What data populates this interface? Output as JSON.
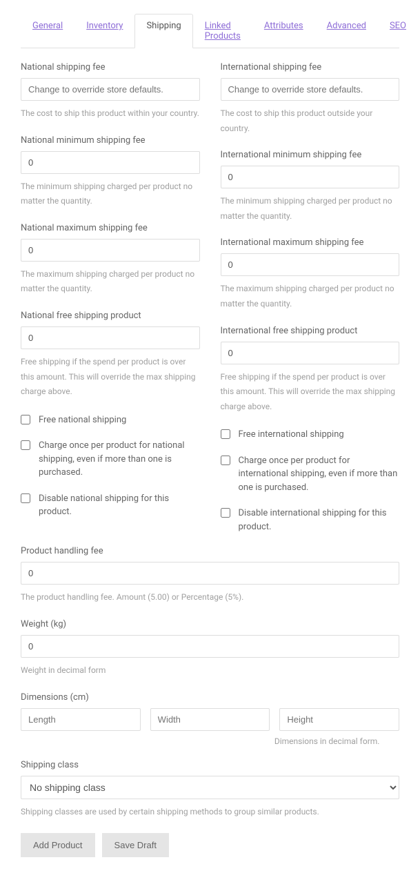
{
  "tabs": {
    "general": "General",
    "inventory": "Inventory",
    "shipping": "Shipping",
    "linked_products": "Linked Products",
    "attributes": "Attributes",
    "advanced": "Advanced",
    "seo": "SEO"
  },
  "national": {
    "fee_label": "National shipping fee",
    "fee_placeholder": "Change to override store defaults.",
    "fee_help": "The cost to ship this product within your country.",
    "min_label": "National minimum shipping fee",
    "min_value": "0",
    "min_help": "The minimum shipping charged per product no matter the quantity.",
    "max_label": "National maximum shipping fee",
    "max_value": "0",
    "max_help": "The maximum shipping charged per product no matter the quantity.",
    "free_label": "National free shipping product",
    "free_value": "0",
    "free_help": "Free shipping if the spend per product is over this amount. This will override the max shipping charge above.",
    "cb_free": "Free national shipping",
    "cb_charge_once": "Charge once per product for national shipping, even if more than one is purchased.",
    "cb_disable": "Disable national shipping for this product."
  },
  "international": {
    "fee_label": "International shipping fee",
    "fee_placeholder": "Change to override store defaults.",
    "fee_help": "The cost to ship this product outside your country.",
    "min_label": "International minimum shipping fee",
    "min_value": "0",
    "min_help": "The minimum shipping charged per product no matter the quantity.",
    "max_label": "International maximum shipping fee",
    "max_value": "0",
    "max_help": "The maximum shipping charged per product no matter the quantity.",
    "free_label": "International free shipping product",
    "free_value": "0",
    "free_help": "Free shipping if the spend per product is over this amount. This will override the max shipping charge above.",
    "cb_free": "Free international shipping",
    "cb_charge_once": "Charge once per product for international shipping, even if more than one is purchased.",
    "cb_disable": "Disable international shipping for this product."
  },
  "handling": {
    "label": "Product handling fee",
    "value": "0",
    "help": "The product handling fee. Amount (5.00) or Percentage (5%)."
  },
  "weight": {
    "label": "Weight (kg)",
    "value": "0",
    "help": "Weight in decimal form"
  },
  "dimensions": {
    "label": "Dimensions (cm)",
    "length_placeholder": "Length",
    "width_placeholder": "Width",
    "height_placeholder": "Height",
    "help": "Dimensions in decimal form."
  },
  "shipping_class": {
    "label": "Shipping class",
    "selected": "No shipping class",
    "help": "Shipping classes are used by certain shipping methods to group similar products."
  },
  "buttons": {
    "add_product": "Add Product",
    "save_draft": "Save Draft"
  }
}
